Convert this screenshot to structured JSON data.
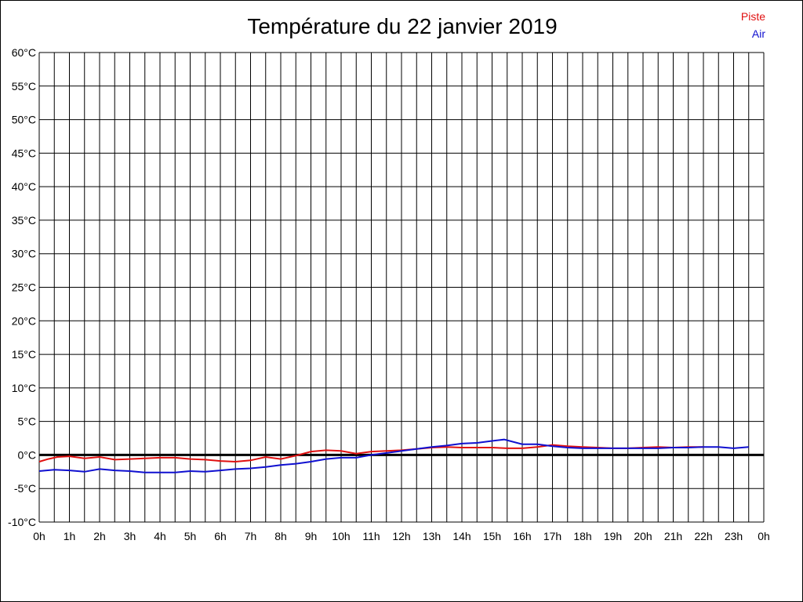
{
  "chart_data": {
    "type": "line",
    "title": "Température du 22 janvier 2019",
    "xlabel": "",
    "ylabel": "",
    "ylim": [
      -10,
      60
    ],
    "xlim": [
      0,
      24
    ],
    "grid": true,
    "legend_placement": "top-right",
    "y_ticks": [
      "60°C",
      "55°C",
      "50°C",
      "45°C",
      "40°C",
      "35°C",
      "30°C",
      "25°C",
      "20°C",
      "15°C",
      "10°C",
      "5°C",
      "0°C",
      "-5°C",
      "-10°C"
    ],
    "x_ticks": [
      "0h",
      "1h",
      "2h",
      "3h",
      "4h",
      "5h",
      "6h",
      "7h",
      "8h",
      "9h",
      "10h",
      "11h",
      "12h",
      "13h",
      "14h",
      "15h",
      "16h",
      "17h",
      "18h",
      "19h",
      "20h",
      "21h",
      "22h",
      "23h",
      "0h"
    ],
    "series": [
      {
        "name": "Piste",
        "color": "#e01010",
        "x": [
          0,
          0.3,
          0.6,
          1,
          1.5,
          2,
          2.5,
          3,
          3.5,
          4,
          4.5,
          5,
          5.5,
          6,
          6.5,
          7,
          7.5,
          8,
          8.5,
          9,
          9.5,
          10,
          10.5,
          11,
          11.5,
          12,
          12.5,
          13,
          13.5,
          14,
          14.5,
          15,
          15.5,
          16,
          16.5,
          17,
          17.5,
          18,
          18.5,
          19,
          19.5,
          20,
          20.5,
          21,
          21.5,
          22
        ],
        "values": [
          -1.0,
          -0.6,
          -0.3,
          -0.2,
          -0.5,
          -0.3,
          -0.7,
          -0.6,
          -0.5,
          -0.4,
          -0.4,
          -0.6,
          -0.7,
          -0.9,
          -1.0,
          -0.8,
          -0.3,
          -0.6,
          -0.1,
          0.5,
          0.7,
          0.6,
          0.2,
          0.5,
          0.6,
          0.7,
          0.9,
          1.1,
          1.2,
          1.1,
          1.1,
          1.1,
          1.0,
          1.0,
          1.2,
          1.5,
          1.3,
          1.2,
          1.1,
          1.0,
          1.0,
          1.1,
          1.2,
          1.1,
          1.2,
          1.2
        ]
      },
      {
        "name": "Air",
        "color": "#1010d0",
        "x": [
          0,
          0.5,
          1,
          1.5,
          2,
          2.5,
          3,
          3.5,
          4,
          4.5,
          5,
          5.5,
          6,
          6.5,
          7,
          7.5,
          8,
          8.5,
          9,
          9.5,
          10,
          10.5,
          11,
          11.5,
          12,
          12.5,
          13,
          13.5,
          14,
          14.5,
          15,
          15.4,
          16,
          16.5,
          17,
          17.5,
          18,
          18.5,
          19,
          19.5,
          20,
          20.5,
          21,
          21.5,
          22,
          22.5,
          23,
          23.5
        ],
        "values": [
          -2.4,
          -2.2,
          -2.3,
          -2.5,
          -2.1,
          -2.3,
          -2.4,
          -2.6,
          -2.6,
          -2.6,
          -2.4,
          -2.5,
          -2.3,
          -2.1,
          -2.0,
          -1.8,
          -1.5,
          -1.3,
          -1.0,
          -0.6,
          -0.4,
          -0.4,
          0.0,
          0.3,
          0.6,
          0.9,
          1.2,
          1.4,
          1.7,
          1.8,
          2.1,
          2.3,
          1.6,
          1.6,
          1.3,
          1.1,
          1.0,
          1.0,
          1.0,
          1.0,
          1.0,
          1.0,
          1.1,
          1.1,
          1.2,
          1.2,
          1.0,
          1.2
        ]
      }
    ]
  }
}
